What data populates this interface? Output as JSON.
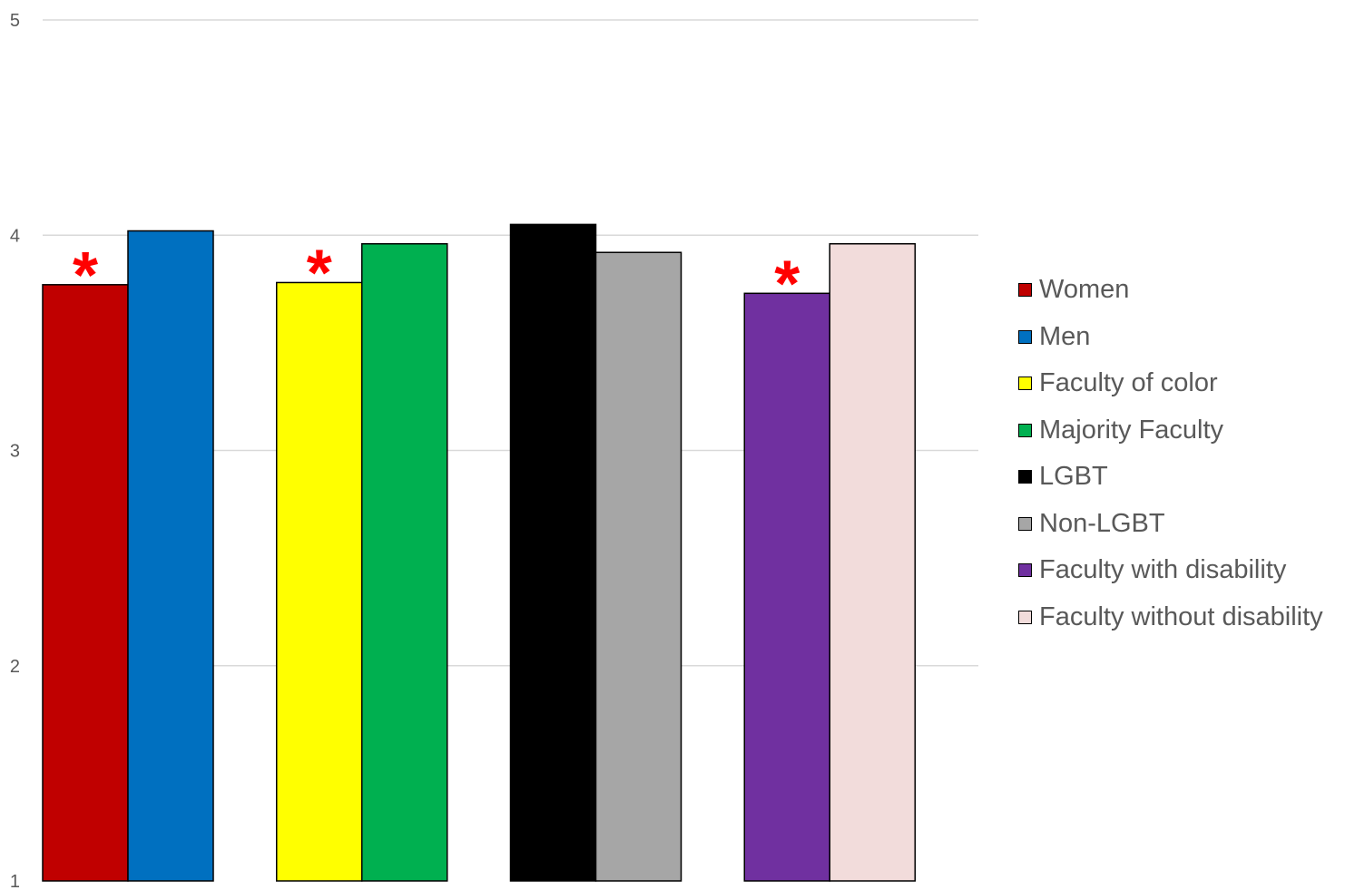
{
  "chart_data": {
    "type": "bar",
    "title": "",
    "xlabel": "",
    "ylabel": "",
    "ylim": [
      1,
      5
    ],
    "yticks": [
      "1",
      "2",
      "3",
      "4",
      "5"
    ],
    "grid": true,
    "legend_position": "right",
    "groups": [
      {
        "bars": [
          {
            "series": "Women",
            "value": 3.77,
            "color": "#c00000"
          },
          {
            "series": "Men",
            "value": 4.02,
            "color": "#0070c0"
          }
        ],
        "marker": "*"
      },
      {
        "bars": [
          {
            "series": "Faculty of color",
            "value": 3.78,
            "color": "#ffff00"
          },
          {
            "series": "Majority Faculty",
            "value": 3.96,
            "color": "#00b050"
          }
        ],
        "marker": "*"
      },
      {
        "bars": [
          {
            "series": "LGBT",
            "value": 4.05,
            "color": "#000000"
          },
          {
            "series": "Non-LGBT",
            "value": 3.92,
            "color": "#a6a6a6"
          }
        ],
        "marker": ""
      },
      {
        "bars": [
          {
            "series": "Faculty with disability",
            "value": 3.73,
            "color": "#7030a0"
          },
          {
            "series": "Faculty without disability",
            "value": 3.96,
            "color": "#f2dcdb"
          }
        ],
        "marker": "*"
      }
    ],
    "legend": [
      {
        "label": "Women",
        "color": "#c00000"
      },
      {
        "label": "Men",
        "color": "#0070c0"
      },
      {
        "label": "Faculty of color",
        "color": "#ffff00"
      },
      {
        "label": "Majority Faculty",
        "color": "#00b050"
      },
      {
        "label": "LGBT",
        "color": "#000000"
      },
      {
        "label": "Non-LGBT",
        "color": "#a6a6a6"
      },
      {
        "label": "Faculty with disability",
        "color": "#7030a0"
      },
      {
        "label": "Faculty without disability",
        "color": "#f2dcdb"
      }
    ]
  }
}
